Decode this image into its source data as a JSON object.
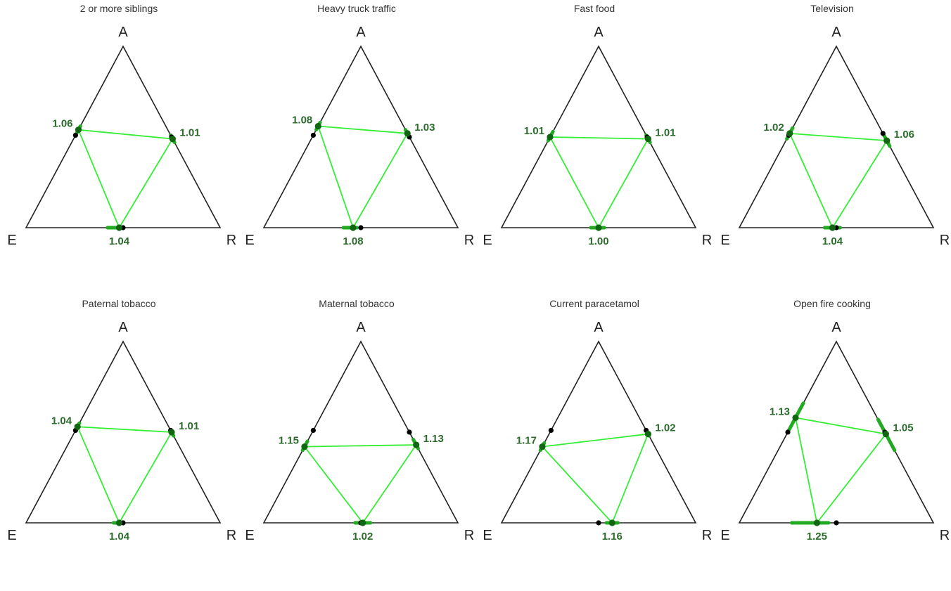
{
  "chart_data": [
    {
      "type": "ternary",
      "title": "2 or more siblings",
      "vertices": {
        "top": "A",
        "left": "E",
        "right": "R"
      },
      "values": {
        "left_edge": "1.06",
        "right_edge": "1.01",
        "bottom_edge": "1.04"
      },
      "estimates": {
        "left_edge": 0.54,
        "right_edge": 0.49,
        "bottom_edge": 0.48
      },
      "reference": {
        "left_edge": 0.51,
        "right_edge": 0.5,
        "bottom_edge": 0.5
      },
      "interval": {
        "left_edge": [
          0.52,
          0.56
        ],
        "right_edge": [
          0.47,
          0.51
        ],
        "bottom_edge": [
          0.42,
          0.5
        ]
      }
    },
    {
      "type": "ternary",
      "title": "Heavy truck traffic",
      "vertices": {
        "top": "A",
        "left": "E",
        "right": "R"
      },
      "values": {
        "left_edge": "1.08",
        "right_edge": "1.03",
        "bottom_edge": "1.08"
      },
      "estimates": {
        "left_edge": 0.56,
        "right_edge": 0.52,
        "bottom_edge": 0.46
      },
      "reference": {
        "left_edge": 0.51,
        "right_edge": 0.5,
        "bottom_edge": 0.5
      },
      "interval": {
        "left_edge": [
          0.54,
          0.58
        ],
        "right_edge": [
          0.5,
          0.54
        ],
        "bottom_edge": [
          0.41,
          0.48
        ]
      }
    },
    {
      "type": "ternary",
      "title": "Fast food",
      "vertices": {
        "top": "A",
        "left": "E",
        "right": "R"
      },
      "values": {
        "left_edge": "1.01",
        "right_edge": "1.01",
        "bottom_edge": "1.00"
      },
      "estimates": {
        "left_edge": 0.5,
        "right_edge": 0.49,
        "bottom_edge": 0.5
      },
      "reference": {
        "left_edge": 0.5,
        "right_edge": 0.5,
        "bottom_edge": 0.5
      },
      "interval": {
        "left_edge": [
          0.48,
          0.53
        ],
        "right_edge": [
          0.47,
          0.51
        ],
        "bottom_edge": [
          0.46,
          0.53
        ]
      }
    },
    {
      "type": "ternary",
      "title": "Television",
      "vertices": {
        "top": "A",
        "left": "E",
        "right": "R"
      },
      "values": {
        "left_edge": "1.02",
        "right_edge": "1.06",
        "bottom_edge": "1.04"
      },
      "estimates": {
        "left_edge": 0.52,
        "right_edge": 0.48,
        "bottom_edge": 0.48
      },
      "reference": {
        "left_edge": 0.51,
        "right_edge": 0.52,
        "bottom_edge": 0.5
      },
      "interval": {
        "left_edge": [
          0.49,
          0.55
        ],
        "right_edge": [
          0.45,
          0.51
        ],
        "bottom_edge": [
          0.44,
          0.52
        ]
      }
    },
    {
      "type": "ternary",
      "title": "Paternal tobacco",
      "vertices": {
        "top": "A",
        "left": "E",
        "right": "R"
      },
      "values": {
        "left_edge": "1.04",
        "right_edge": "1.01",
        "bottom_edge": "1.04"
      },
      "estimates": {
        "left_edge": 0.53,
        "right_edge": 0.5,
        "bottom_edge": 0.48
      },
      "reference": {
        "left_edge": 0.51,
        "right_edge": 0.51,
        "bottom_edge": 0.5
      },
      "interval": {
        "left_edge": [
          0.51,
          0.55
        ],
        "right_edge": [
          0.48,
          0.51
        ],
        "bottom_edge": [
          0.45,
          0.5
        ]
      }
    },
    {
      "type": "ternary",
      "title": "Maternal tobacco",
      "vertices": {
        "top": "A",
        "left": "E",
        "right": "R"
      },
      "values": {
        "left_edge": "1.15",
        "right_edge": "1.13",
        "bottom_edge": "1.02"
      },
      "estimates": {
        "left_edge": 0.42,
        "right_edge": 0.43,
        "bottom_edge": 0.51
      },
      "reference": {
        "left_edge": 0.51,
        "right_edge": 0.5,
        "bottom_edge": 0.5
      },
      "interval": {
        "left_edge": [
          0.4,
          0.45
        ],
        "right_edge": [
          0.41,
          0.46
        ],
        "bottom_edge": [
          0.47,
          0.55
        ]
      }
    },
    {
      "type": "ternary",
      "title": "Current paracetamol",
      "vertices": {
        "top": "A",
        "left": "E",
        "right": "R"
      },
      "values": {
        "left_edge": "1.17",
        "right_edge": "1.02",
        "bottom_edge": "1.16"
      },
      "estimates": {
        "left_edge": 0.42,
        "right_edge": 0.49,
        "bottom_edge": 0.57
      },
      "reference": {
        "left_edge": 0.51,
        "right_edge": 0.51,
        "bottom_edge": 0.5
      },
      "interval": {
        "left_edge": [
          0.4,
          0.44
        ],
        "right_edge": [
          0.48,
          0.51
        ],
        "bottom_edge": [
          0.54,
          0.6
        ]
      }
    },
    {
      "type": "ternary",
      "title": "Open fire cooking",
      "vertices": {
        "top": "A",
        "left": "E",
        "right": "R"
      },
      "values": {
        "left_edge": "1.13",
        "right_edge": "1.05",
        "bottom_edge": "1.25"
      },
      "estimates": {
        "left_edge": 0.58,
        "right_edge": 0.49,
        "bottom_edge": 0.4
      },
      "reference": {
        "left_edge": 0.5,
        "right_edge": 0.5,
        "bottom_edge": 0.5
      },
      "interval": {
        "left_edge": [
          0.5,
          0.66
        ],
        "right_edge": [
          0.4,
          0.57
        ],
        "bottom_edge": [
          0.27,
          0.46
        ]
      }
    }
  ],
  "colors": {
    "triangle": "#222222",
    "line": "#33ee33",
    "band": "#22aa22",
    "point": "#116611",
    "ref": "#000000",
    "label": "#2b6b2b"
  }
}
